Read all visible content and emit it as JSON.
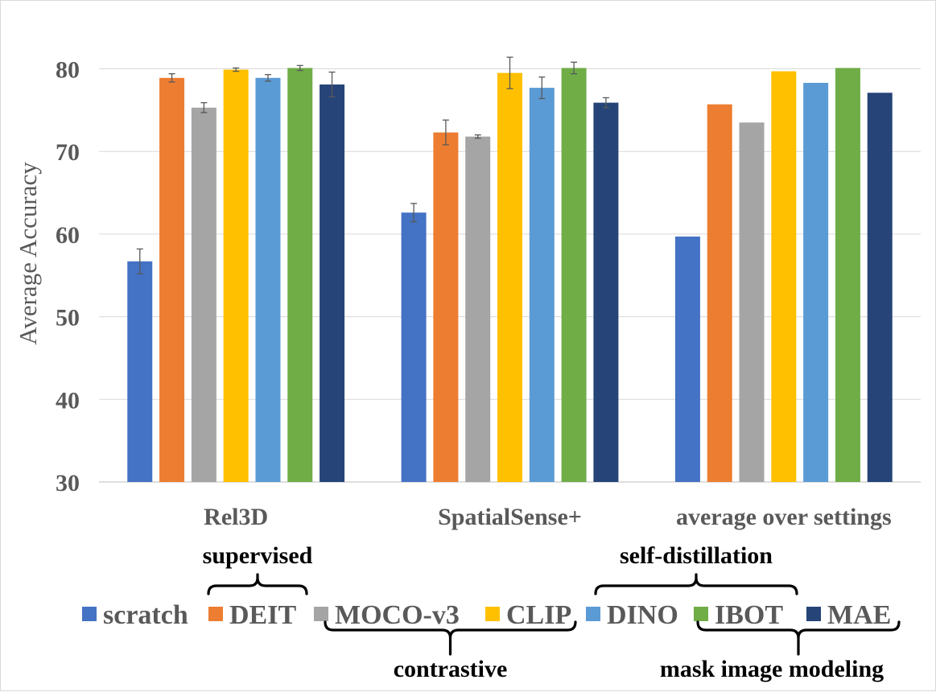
{
  "chart_data": {
    "type": "bar",
    "title": "",
    "xlabel": "",
    "ylabel": "Average Accuracy",
    "ylim": [
      30,
      85
    ],
    "yticks": [
      30,
      40,
      50,
      60,
      70,
      80
    ],
    "grid": true,
    "legend_position": "bottom",
    "categories": [
      "Rel3D",
      "SpatialSense+",
      "average over settings"
    ],
    "series": [
      {
        "name": "scratch",
        "color": "#4472C4",
        "values": [
          56.7,
          62.6,
          59.7
        ],
        "errors": [
          1.5,
          1.1,
          0
        ]
      },
      {
        "name": "DEIT",
        "color": "#ED7D31",
        "values": [
          78.9,
          72.3,
          75.7
        ],
        "errors": [
          0.5,
          1.5,
          0
        ]
      },
      {
        "name": "MOCO-v3",
        "color": "#A5A5A5",
        "values": [
          75.3,
          71.8,
          73.5
        ],
        "errors": [
          0.6,
          0.2,
          0
        ]
      },
      {
        "name": "CLIP",
        "color": "#FFC000",
        "values": [
          79.9,
          79.5,
          79.7
        ],
        "errors": [
          0.2,
          1.9,
          0
        ]
      },
      {
        "name": "DINO",
        "color": "#5B9BD5",
        "values": [
          78.9,
          77.7,
          78.3
        ],
        "errors": [
          0.4,
          1.3,
          0
        ]
      },
      {
        "name": "IBOT",
        "color": "#70AD47",
        "values": [
          80.1,
          80.1,
          80.1
        ],
        "errors": [
          0.3,
          0.7,
          0
        ]
      },
      {
        "name": "MAE",
        "color": "#264478",
        "values": [
          78.1,
          75.9,
          77.1
        ],
        "errors": [
          1.5,
          0.6,
          0
        ]
      }
    ],
    "groups": [
      {
        "label": "supervised",
        "members": [
          "DEIT"
        ]
      },
      {
        "label": "contrastive",
        "members": [
          "MOCO-v3",
          "CLIP"
        ]
      },
      {
        "label": "self-distillation",
        "members": [
          "DINO",
          "IBOT"
        ]
      },
      {
        "label": "mask image modeling",
        "members": [
          "IBOT",
          "MAE"
        ]
      }
    ]
  }
}
